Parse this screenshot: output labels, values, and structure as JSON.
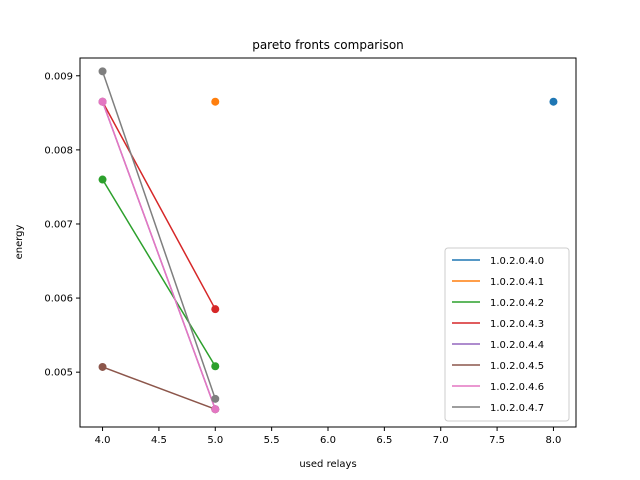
{
  "chart_data": {
    "type": "line",
    "title": "pareto fronts comparison",
    "xlabel": "used relays",
    "ylabel": "energy",
    "xlim": [
      3.8,
      8.2
    ],
    "ylim": [
      0.00426,
      0.00924
    ],
    "xticks": [
      "4.0",
      "4.5",
      "5.0",
      "5.5",
      "6.0",
      "6.5",
      "7.0",
      "7.5",
      "8.0"
    ],
    "yticks": [
      "0.005",
      "0.006",
      "0.007",
      "0.008",
      "0.009"
    ],
    "grid": false,
    "legend_position": "lower-right",
    "series": [
      {
        "name": "1.0.2.0.4.0",
        "color": "#1f77b4",
        "x": [
          8.0
        ],
        "y": [
          0.00865
        ]
      },
      {
        "name": "1.0.2.0.4.1",
        "color": "#ff7f0e",
        "x": [
          5.0
        ],
        "y": [
          0.00865
        ]
      },
      {
        "name": "1.0.2.0.4.2",
        "color": "#2ca02c",
        "x": [
          4.0,
          5.0
        ],
        "y": [
          0.0076,
          0.00508
        ]
      },
      {
        "name": "1.0.2.0.4.3",
        "color": "#d62728",
        "x": [
          4.0,
          5.0
        ],
        "y": [
          0.00865,
          0.00585
        ]
      },
      {
        "name": "1.0.2.0.4.4",
        "color": "#9467bd",
        "x": [
          4.0,
          5.0
        ],
        "y": [
          0.00865,
          0.0045
        ]
      },
      {
        "name": "1.0.2.0.4.5",
        "color": "#8c564b",
        "x": [
          4.0,
          5.0
        ],
        "y": [
          0.00507,
          0.0045
        ]
      },
      {
        "name": "1.0.2.0.4.6",
        "color": "#e377c2",
        "x": [
          4.0,
          5.0
        ],
        "y": [
          0.00865,
          0.0045
        ]
      },
      {
        "name": "1.0.2.0.4.7",
        "color": "#7f7f7f",
        "x": [
          4.0,
          5.0
        ],
        "y": [
          0.00906,
          0.00464
        ]
      }
    ]
  }
}
